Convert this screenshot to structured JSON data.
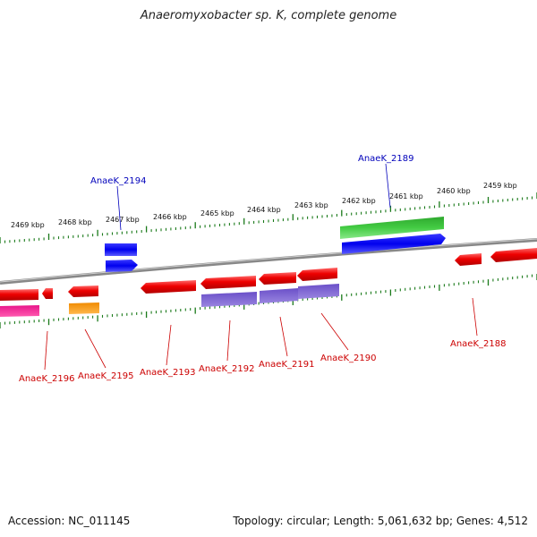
{
  "title": "Anaeromyxobacter sp. K, complete genome",
  "footer": {
    "accession": "Accession: NC_011145",
    "summary": "Topology: circular; Length: 5,061,632 bp; Genes: 4,512"
  },
  "colors": {
    "backbone": "#8a8a8a",
    "tick": "#1a7a1a",
    "label_forward": "#0000bb",
    "label_reverse": "#cc0000"
  },
  "ticks": [
    "2469 kbp",
    "2468 kbp",
    "2467 kbp",
    "2466 kbp",
    "2465 kbp",
    "2464 kbp",
    "2463 kbp",
    "2462 kbp",
    "2461 kbp",
    "2460 kbp",
    "2459 kbp"
  ],
  "genes": [
    {
      "label": "AnaeK_2194",
      "strand": "forward"
    },
    {
      "label": "AnaeK_2189",
      "strand": "forward"
    },
    {
      "label": "AnaeK_2196",
      "strand": "reverse"
    },
    {
      "label": "AnaeK_2195",
      "strand": "reverse"
    },
    {
      "label": "AnaeK_2193",
      "strand": "reverse"
    },
    {
      "label": "AnaeK_2192",
      "strand": "reverse"
    },
    {
      "label": "AnaeK_2191",
      "strand": "reverse"
    },
    {
      "label": "AnaeK_2190",
      "strand": "reverse"
    },
    {
      "label": "AnaeK_2188",
      "strand": "reverse"
    }
  ]
}
